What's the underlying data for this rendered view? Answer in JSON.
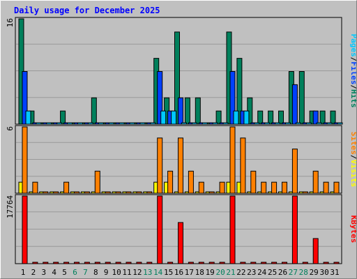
{
  "colors": {
    "background": "#c0c0c0",
    "frame_light": "#ffffff",
    "frame_dark": "#808080",
    "grid": "#999999",
    "title": "#0000ff",
    "day_weekday": "#000000",
    "day_weekend": "#00805c",
    "hits": "#00805c",
    "files": "#0040ff",
    "pages": "#00c8ff",
    "visits": "#ff8000",
    "sites": "#ffff00",
    "kbytes": "#ff0000"
  },
  "chart_data": {
    "type": "bar",
    "title": "Daily usage for December 2025",
    "categories": [
      "1",
      "2",
      "3",
      "4",
      "5",
      "6",
      "7",
      "8",
      "9",
      "10",
      "11",
      "12",
      "13",
      "14",
      "15",
      "16",
      "17",
      "18",
      "19",
      "20",
      "21",
      "22",
      "23",
      "24",
      "25",
      "26",
      "27",
      "28",
      "29",
      "30",
      "31"
    ],
    "weekend_days": [
      "6",
      "7",
      "13",
      "14",
      "20",
      "21",
      "27",
      "28"
    ],
    "panels": [
      {
        "id": "hits-files-pages",
        "ymax": 16,
        "ymax_label": "16",
        "grid_lines": 4,
        "legend": [
          {
            "text": "Pages",
            "color": "#00c8ff"
          },
          {
            "text": "/",
            "color": "#000000"
          },
          {
            "text": "Files",
            "color": "#0040ff"
          },
          {
            "text": "/",
            "color": "#000000"
          },
          {
            "text": "Hits",
            "color": "#00805c"
          }
        ],
        "series": [
          {
            "name": "Hits",
            "color": "#00805c",
            "offset": 0,
            "values": [
              16,
              2,
              0,
              0,
              2,
              0,
              0,
              4,
              0,
              0,
              0,
              0,
              0,
              10,
              4,
              14,
              4,
              4,
              0,
              2,
              14,
              10,
              4,
              2,
              2,
              2,
              8,
              8,
              2,
              2,
              2
            ]
          },
          {
            "name": "Files",
            "color": "#0040ff",
            "offset": 1,
            "values": [
              8,
              0,
              0,
              0,
              0,
              0,
              0,
              0,
              0,
              0,
              0,
              0,
              0,
              8,
              2,
              4,
              0,
              0,
              0,
              0,
              8,
              2,
              0,
              0,
              0,
              0,
              6,
              0,
              2,
              0,
              0
            ]
          },
          {
            "name": "Pages",
            "color": "#00c8ff",
            "offset": 2,
            "values": [
              2,
              0,
              0,
              0,
              0,
              0,
              0,
              0,
              0,
              0,
              0,
              0,
              0,
              2,
              2,
              0,
              0,
              0,
              0,
              0,
              2,
              2,
              0,
              0,
              0,
              0,
              0,
              0,
              0,
              0,
              0
            ]
          }
        ]
      },
      {
        "id": "visits-sites",
        "ymax": 6,
        "ymax_label": "6",
        "grid_lines": 4,
        "legend": [
          {
            "text": "Sites",
            "color": "#ff8000"
          },
          {
            "text": "/",
            "color": "#000000"
          },
          {
            "text": "Visits",
            "color": "#ffff00"
          }
        ],
        "series": [
          {
            "name": "Sites",
            "color": "#ffff00",
            "offset": 0,
            "values": [
              1,
              0,
              0,
              0,
              0,
              0,
              0,
              0,
              0,
              0,
              0,
              0,
              0,
              1,
              1,
              0,
              0,
              0,
              0,
              0,
              1,
              1,
              0,
              0,
              0,
              0,
              0,
              0,
              0,
              0,
              0
            ]
          },
          {
            "name": "Visits",
            "color": "#ff8000",
            "offset": 1,
            "values": [
              6,
              1,
              0,
              0,
              1,
              0,
              0,
              2,
              0,
              0,
              0,
              0,
              0,
              5,
              2,
              5,
              2,
              1,
              0,
              1,
              6,
              5,
              2,
              1,
              1,
              1,
              4,
              0,
              2,
              1,
              1
            ]
          }
        ]
      },
      {
        "id": "kbytes",
        "ymax": 17764,
        "ymax_label": "17764",
        "grid_lines": 4,
        "legend": [
          {
            "text": "KBytes",
            "color": "#ff0000"
          }
        ],
        "series": [
          {
            "name": "KBytes",
            "color": "#ff0000",
            "offset": 1,
            "values": [
              17764,
              0,
              0,
              0,
              0,
              0,
              0,
              0,
              0,
              0,
              0,
              0,
              0,
              17764,
              0,
              10800,
              0,
              0,
              0,
              0,
              17764,
              0,
              0,
              0,
              0,
              0,
              17764,
              0,
              6600,
              0,
              0
            ]
          }
        ]
      }
    ]
  }
}
